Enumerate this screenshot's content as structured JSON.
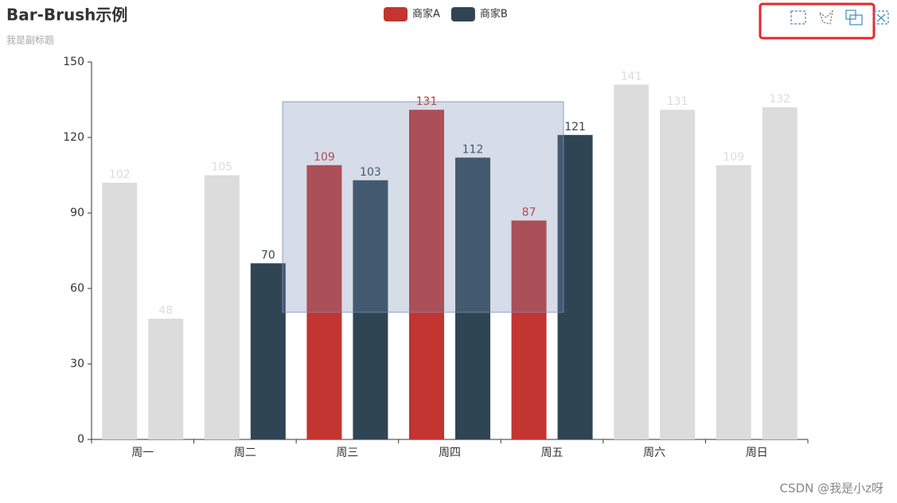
{
  "chart_data": {
    "type": "bar",
    "title": "Bar-Brush示例",
    "subtitle": "我是副标题",
    "categories": [
      "周一",
      "周二",
      "周三",
      "周四",
      "周五",
      "周六",
      "周日"
    ],
    "series": [
      {
        "name": "商家A",
        "color": "#c23531",
        "values": [
          102,
          105,
          109,
          131,
          87,
          141,
          109
        ],
        "selected": [
          false,
          false,
          true,
          true,
          true,
          false,
          false
        ]
      },
      {
        "name": "商家B",
        "color": "#2f4554",
        "values": [
          48,
          70,
          103,
          112,
          121,
          131,
          132
        ],
        "selected": [
          false,
          true,
          true,
          true,
          true,
          false,
          false
        ]
      }
    ],
    "unselected_color": "#dcdcdc",
    "ylim": [
      0,
      150
    ],
    "yticks": [
      0,
      30,
      60,
      90,
      120,
      150
    ],
    "grid": false,
    "legend": "top",
    "watermark": "CSDN @我是小z呀"
  }
}
